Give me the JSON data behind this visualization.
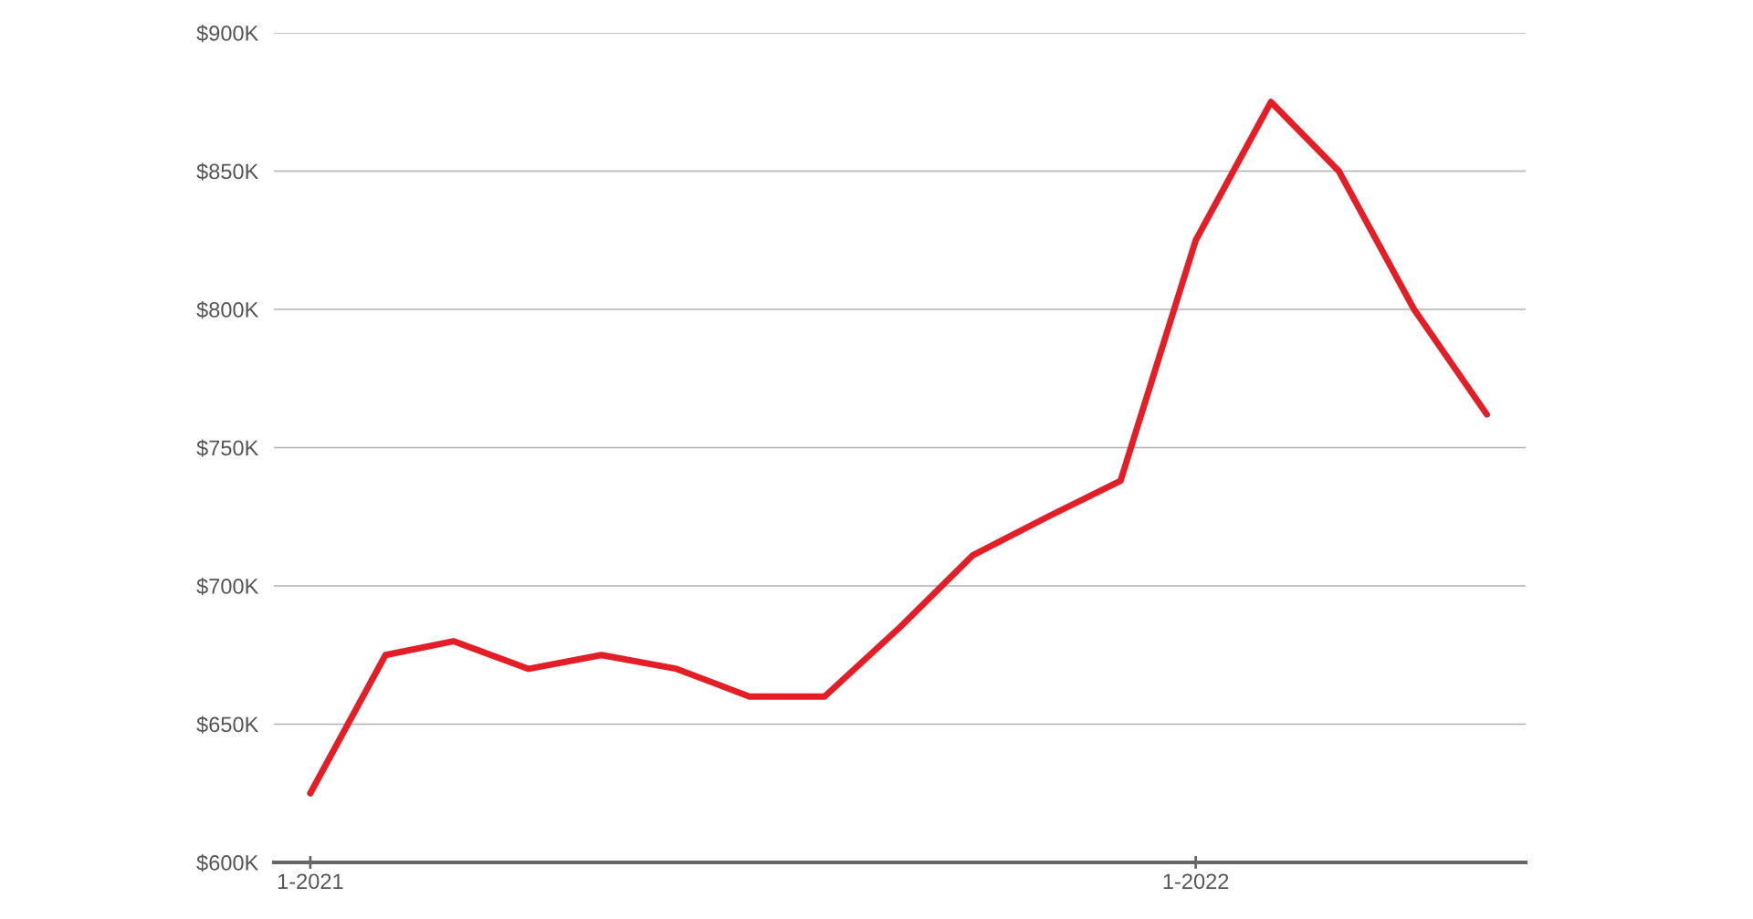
{
  "chart_data": {
    "type": "line",
    "x": [
      "2021-01",
      "2021-02",
      "2021-03",
      "2021-04",
      "2021-05",
      "2021-06",
      "2021-07",
      "2021-08",
      "2021-09",
      "2021-10",
      "2021-11",
      "2021-12",
      "2022-01",
      "2022-02",
      "2022-03",
      "2022-04",
      "2022-05"
    ],
    "series": [
      {
        "color": "#e41e26",
        "values": [
          625000,
          675000,
          680000,
          670000,
          675000,
          670000,
          660000,
          660000,
          685000,
          711000,
          725000,
          738000,
          825000,
          875000,
          850000,
          800000,
          762000
        ]
      }
    ],
    "xlim": [
      "2020-12-17",
      "2022-05-17"
    ],
    "xticks": [
      {
        "value": "2021-01",
        "label": "1-2021"
      },
      {
        "value": "2022-01",
        "label": "1-2022"
      }
    ],
    "ylim": [
      600000,
      900000
    ],
    "yticks": [
      {
        "value": 600000,
        "label": "$600K"
      },
      {
        "value": 650000,
        "label": "$650K"
      },
      {
        "value": 700000,
        "label": "$700K"
      },
      {
        "value": 750000,
        "label": "$750K"
      },
      {
        "value": 800000,
        "label": "$800K"
      },
      {
        "value": 850000,
        "label": "$850K"
      },
      {
        "value": 900000,
        "label": "$900K"
      }
    ],
    "grid": "y",
    "legend": false,
    "marker": "none",
    "line_style": "solid"
  }
}
